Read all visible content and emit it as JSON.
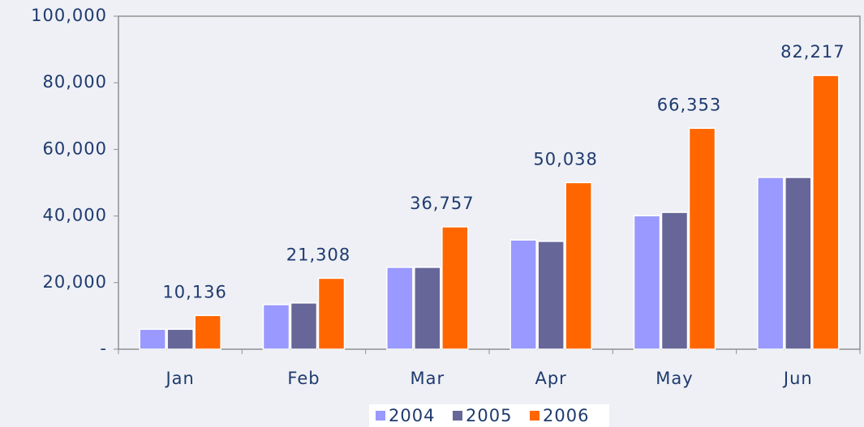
{
  "chart_data": {
    "type": "bar",
    "categories": [
      "Jan",
      "Feb",
      "Mar",
      "Apr",
      "May",
      "Jun"
    ],
    "series": [
      {
        "name": "2004",
        "color": "#9999ff",
        "values": [
          6000,
          13400,
          24600,
          32800,
          40100,
          51600
        ]
      },
      {
        "name": "2005",
        "color": "#666699",
        "values": [
          6000,
          13900,
          24600,
          32400,
          41100,
          51600
        ]
      },
      {
        "name": "2006",
        "color": "#ff6600",
        "values": [
          10136,
          21308,
          36757,
          50038,
          66353,
          82217
        ],
        "value_labels": [
          "10,136",
          "21,308",
          "36,757",
          "50,038",
          "66,353",
          "82,217"
        ]
      }
    ],
    "ylim": [
      0,
      100000
    ],
    "yticks": [
      {
        "value": 0,
        "label": "-"
      },
      {
        "value": 20000,
        "label": "20,000"
      },
      {
        "value": 40000,
        "label": "40,000"
      },
      {
        "value": 60000,
        "label": "60,000"
      },
      {
        "value": 80000,
        "label": "80,000"
      },
      {
        "value": 100000,
        "label": "100,000"
      }
    ],
    "legend": "bottom"
  }
}
